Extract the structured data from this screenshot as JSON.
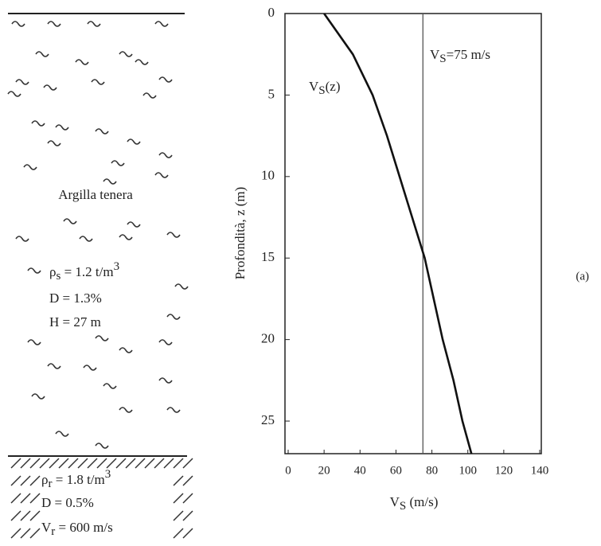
{
  "chart_data": {
    "type": "line",
    "panel_label": "(a)",
    "y_label": "Profondità, z (m)",
    "x_label": {
      "base": "V",
      "sub": "S",
      "rest": " (m/s)"
    },
    "curve_label": {
      "base": "V",
      "sub": "S",
      "rest": "(z)"
    },
    "reference": {
      "value": 75,
      "base": "V",
      "sub": "S",
      "rest": "=75 m/s"
    },
    "depth": [
      0,
      2.5,
      5,
      7.5,
      10,
      12.5,
      15,
      17.5,
      20,
      22.5,
      25,
      27
    ],
    "values": [
      20,
      36,
      47,
      55,
      62,
      69,
      76,
      81,
      86,
      92,
      97,
      102
    ],
    "xlim": [
      0,
      140
    ],
    "xticks": [
      0,
      20,
      40,
      60,
      80,
      100,
      120,
      140
    ],
    "ylim": [
      0,
      27
    ],
    "yticks": [
      0,
      5,
      10,
      15,
      20,
      25
    ],
    "y_inverted": true,
    "color": "#111"
  },
  "soil": {
    "layer_name": "Argilla tenera",
    "clay_density": {
      "symbol": "ρ",
      "sub": "s",
      "text": " = 1.2 t/m",
      "sup": "3"
    },
    "clay_damping": "D = 1.3%",
    "clay_thickness": "H = 27 m",
    "rock_density": {
      "symbol": "ρ",
      "sub": "r",
      "text": " = 1.8 t/m",
      "sup": "3"
    },
    "rock_damping": "D = 0.5%",
    "rock_velocity": {
      "symbol": "V",
      "sub": "r",
      "text": " = 600 m/s"
    }
  }
}
